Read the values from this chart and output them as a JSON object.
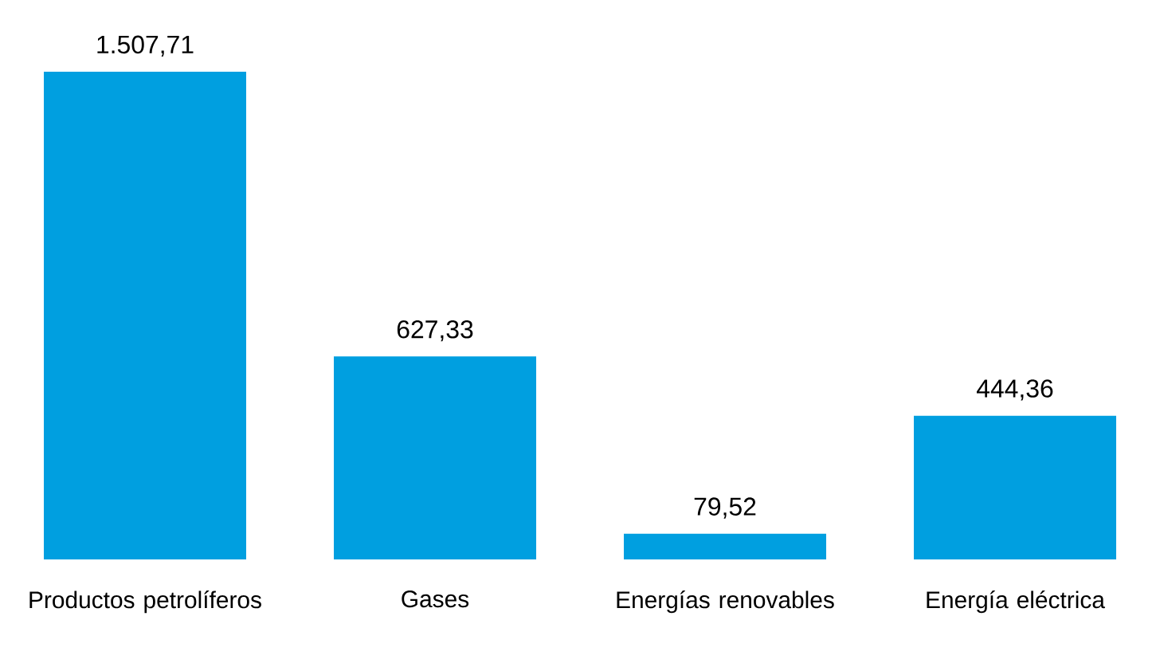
{
  "chart_data": {
    "type": "bar",
    "categories": [
      "Productos petrolíferos",
      "Gases",
      "Energías renovables",
      "Energía eléctrica"
    ],
    "values": [
      1507.71,
      627.33,
      79.52,
      444.36
    ],
    "value_labels": [
      "1.507,71",
      "627,33",
      "79,52",
      "444,36"
    ],
    "color": "#009fe0"
  }
}
